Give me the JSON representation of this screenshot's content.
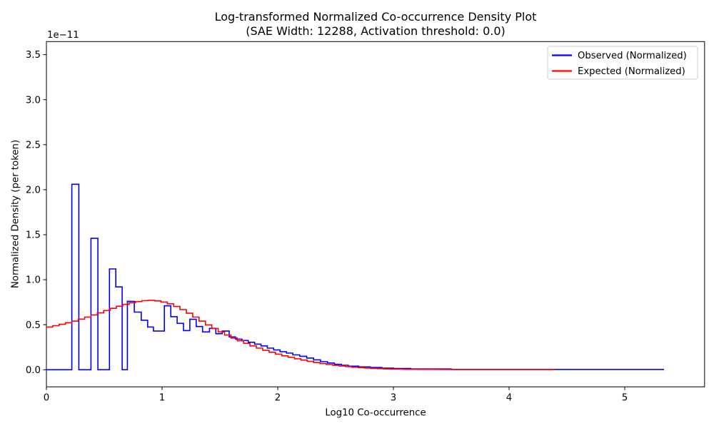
{
  "chart_data": {
    "type": "line",
    "title": "Log-transformed Normalized Co-occurrence Density Plot",
    "subtitle": "(SAE Width: 12288, Activation threshold: 0.0)",
    "xlabel": "Log10 Co-occurrence",
    "ylabel": "Normalized Density (per token)",
    "y_offset_label": "1e−11",
    "y_unit_scale": "1e-11",
    "grid": false,
    "x_ticks": [
      "0",
      "1",
      "2",
      "3",
      "4",
      "5"
    ],
    "y_ticks": [
      "0.0",
      "0.5",
      "1.0",
      "1.5",
      "2.0",
      "2.5",
      "3.0",
      "3.5"
    ],
    "xlim": [
      0,
      5.69
    ],
    "ylim": [
      -0.19,
      3.645
    ],
    "legend": {
      "position": "upper right",
      "entries": [
        {
          "label": "Observed (Normalized)",
          "color": "#0000ff"
        },
        {
          "label": "Expected (Normalized)",
          "color": "#ff0000"
        }
      ]
    },
    "series": [
      {
        "id": "observed",
        "name": "Observed (Normalized)",
        "color": "#0000ff",
        "style": "step-post",
        "points": [
          [
            0.0,
            0
          ],
          [
            0.22,
            2.06
          ],
          [
            0.28,
            0
          ],
          [
            0.385,
            1.46
          ],
          [
            0.445,
            0
          ],
          [
            0.545,
            1.12
          ],
          [
            0.6,
            0.92
          ],
          [
            0.655,
            0
          ],
          [
            0.7,
            0.76
          ],
          [
            0.76,
            0.64
          ],
          [
            0.82,
            0.55
          ],
          [
            0.875,
            0.475
          ],
          [
            0.925,
            0.43
          ],
          [
            1.02,
            0.71
          ],
          [
            1.075,
            0.59
          ],
          [
            1.13,
            0.515
          ],
          [
            1.185,
            0.435
          ],
          [
            1.24,
            0.56
          ],
          [
            1.295,
            0.48
          ],
          [
            1.35,
            0.42
          ],
          [
            1.41,
            0.46
          ],
          [
            1.465,
            0.4
          ],
          [
            1.52,
            0.43
          ],
          [
            1.58,
            0.365
          ],
          [
            1.635,
            0.34
          ],
          [
            1.69,
            0.325
          ],
          [
            1.745,
            0.305
          ],
          [
            1.8,
            0.285
          ],
          [
            1.855,
            0.265
          ],
          [
            1.91,
            0.24
          ],
          [
            1.965,
            0.22
          ],
          [
            2.02,
            0.2
          ],
          [
            2.075,
            0.185
          ],
          [
            2.13,
            0.165
          ],
          [
            2.19,
            0.15
          ],
          [
            2.25,
            0.13
          ],
          [
            2.31,
            0.11
          ],
          [
            2.37,
            0.09
          ],
          [
            2.43,
            0.075
          ],
          [
            2.49,
            0.06
          ],
          [
            2.55,
            0.05
          ],
          [
            2.61,
            0.04
          ],
          [
            2.7,
            0.032
          ],
          [
            2.8,
            0.025
          ],
          [
            2.9,
            0.018
          ],
          [
            3.0,
            0.014
          ],
          [
            3.15,
            0.009
          ],
          [
            3.5,
            0.003
          ],
          [
            5.34,
            0.003
          ]
        ]
      },
      {
        "id": "expected",
        "name": "Expected (Normalized)",
        "color": "#ff0000",
        "style": "step-post",
        "points": [
          [
            0.0,
            0.475
          ],
          [
            0.055,
            0.49
          ],
          [
            0.11,
            0.505
          ],
          [
            0.165,
            0.522
          ],
          [
            0.22,
            0.54
          ],
          [
            0.275,
            0.562
          ],
          [
            0.33,
            0.585
          ],
          [
            0.385,
            0.608
          ],
          [
            0.44,
            0.632
          ],
          [
            0.495,
            0.658
          ],
          [
            0.55,
            0.682
          ],
          [
            0.605,
            0.705
          ],
          [
            0.66,
            0.726
          ],
          [
            0.715,
            0.744
          ],
          [
            0.77,
            0.758
          ],
          [
            0.825,
            0.767
          ],
          [
            0.88,
            0.77
          ],
          [
            0.935,
            0.765
          ],
          [
            0.99,
            0.752
          ],
          [
            1.045,
            0.732
          ],
          [
            1.1,
            0.703
          ],
          [
            1.155,
            0.668
          ],
          [
            1.21,
            0.628
          ],
          [
            1.265,
            0.585
          ],
          [
            1.32,
            0.54
          ],
          [
            1.375,
            0.497
          ],
          [
            1.43,
            0.458
          ],
          [
            1.485,
            0.42
          ],
          [
            1.54,
            0.385
          ],
          [
            1.595,
            0.352
          ],
          [
            1.65,
            0.322
          ],
          [
            1.705,
            0.293
          ],
          [
            1.76,
            0.265
          ],
          [
            1.815,
            0.24
          ],
          [
            1.87,
            0.216
          ],
          [
            1.925,
            0.194
          ],
          [
            1.98,
            0.174
          ],
          [
            2.035,
            0.155
          ],
          [
            2.09,
            0.138
          ],
          [
            2.145,
            0.122
          ],
          [
            2.2,
            0.107
          ],
          [
            2.255,
            0.093
          ],
          [
            2.31,
            0.08
          ],
          [
            2.365,
            0.068
          ],
          [
            2.42,
            0.058
          ],
          [
            2.475,
            0.049
          ],
          [
            2.53,
            0.041
          ],
          [
            2.585,
            0.034
          ],
          [
            2.64,
            0.028
          ],
          [
            2.695,
            0.023
          ],
          [
            2.75,
            0.019
          ],
          [
            2.805,
            0.015
          ],
          [
            2.86,
            0.012
          ],
          [
            2.915,
            0.009
          ],
          [
            2.97,
            0.007
          ],
          [
            3.08,
            0.005
          ],
          [
            3.2,
            0.004
          ],
          [
            3.4,
            0.003
          ],
          [
            4.4,
            0.003
          ]
        ]
      }
    ]
  }
}
